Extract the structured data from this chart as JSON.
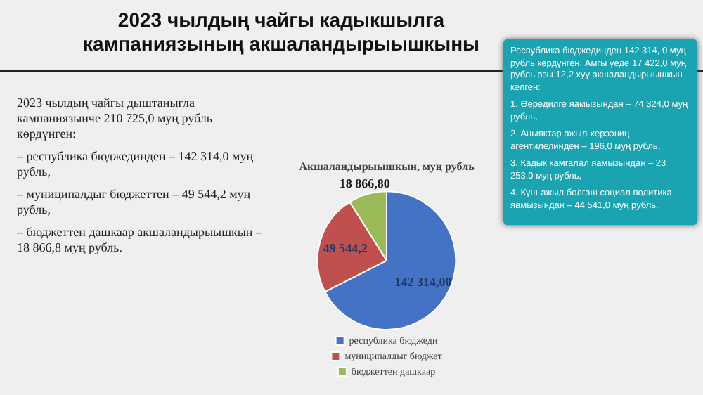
{
  "chart_data": {
    "type": "pie",
    "title": "2023 чылдың чайгы кадыкшылга кампаниязының акшаландырыышкыны",
    "subtitle": "Акшаландырыышкын, муң рубль",
    "categories": [
      "республика бюджеди",
      "муниципалдыг бюджет",
      "бюджеттен дашкаар"
    ],
    "values": [
      142314.0,
      49544.2,
      18866.8
    ],
    "value_labels": [
      "142 314,00",
      "49 544,2",
      "18 866,80"
    ],
    "colors": [
      "#4472c4",
      "#c0504d",
      "#9bbb59"
    ],
    "legend": "bottom",
    "annotations": [
      "2023 чылдың чайгы дыштаныгла кампаниязынче 210 725,0 муң рубль көрдүнген:",
      "– республика бюджединден – 142 314,0 муң рубль,",
      "– муниципалдыг бюджеттен – 49 544,2 муң рубль,",
      "– бюджеттен дашкаар акшаландырыышкын – 18 866,8 муң рубль.",
      "Республика бюджединден 142 314, 0 муң рубль көрдүнген. Амгы үеде 17 422,0 муң рубль азы 12,2 хуу акшаландырыышкын келген:",
      "1. Өөредилге яамызындан – 74 324,0 муң рубль,",
      "2. Аныяктар ажыл-херээниң агентилелинден – 196,0 муң рубль,",
      "3. Кадык камгалал яамызындан – 23 253,0 муң рубль,",
      "4. Күш-ажыл болгаш социал политика яамызындан – 44 541,0 муң рубль."
    ]
  }
}
